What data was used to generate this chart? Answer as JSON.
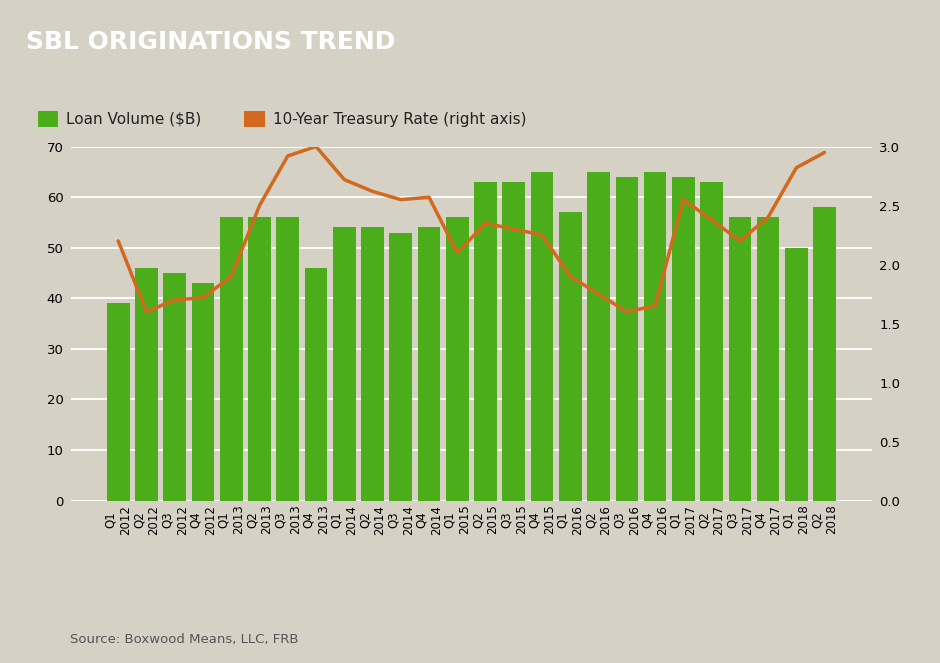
{
  "categories": [
    "Q1\n2012",
    "Q2\n2012",
    "Q3\n2012",
    "Q4\n2012",
    "Q1\n2013",
    "Q2\n2013",
    "Q3\n2013",
    "Q4\n2013",
    "Q1\n2014",
    "Q2\n2014",
    "Q3\n2014",
    "Q4\n2014",
    "Q1\n2015",
    "Q2\n2015",
    "Q3\n2015",
    "Q4\n2015",
    "Q1\n2016",
    "Q2\n2016",
    "Q3\n2016",
    "Q4\n2016",
    "Q1\n2017",
    "Q2\n2017",
    "Q3\n2017",
    "Q4\n2017",
    "Q1\n2018",
    "Q2\n2018"
  ],
  "loan_volume": [
    39,
    46,
    45,
    43,
    56,
    56,
    56,
    46,
    54,
    54,
    53,
    54,
    56,
    63,
    63,
    65,
    57,
    65,
    64,
    65,
    64,
    63,
    56,
    56,
    50,
    58
  ],
  "treasury_rate": [
    2.2,
    1.6,
    1.7,
    1.72,
    1.9,
    2.5,
    2.92,
    3.0,
    2.72,
    2.62,
    2.55,
    2.57,
    2.1,
    2.35,
    2.3,
    2.25,
    1.9,
    1.75,
    1.6,
    1.65,
    2.55,
    2.38,
    2.2,
    2.4,
    2.82,
    2.95
  ],
  "bar_color": "#4cad1b",
  "line_color": "#d2691e",
  "background_color": "#d5d1c4",
  "title": "SBL ORIGINATIONS TREND",
  "ylim_left": [
    0,
    70
  ],
  "ylim_right": [
    0.0,
    3.0
  ],
  "yticks_left": [
    0,
    10,
    20,
    30,
    40,
    50,
    60,
    70
  ],
  "yticks_right": [
    0.0,
    0.5,
    1.0,
    1.5,
    2.0,
    2.5,
    3.0
  ],
  "source_text": "Source: Boxwood Means, LLC, FRB",
  "legend_bar_label": "Loan Volume ($B)",
  "legend_line_label": "10-Year Treasury Rate (right axis)",
  "title_bg_color": "#686868",
  "title_text_color": "#ffffff",
  "grid_color": "#ffffff"
}
